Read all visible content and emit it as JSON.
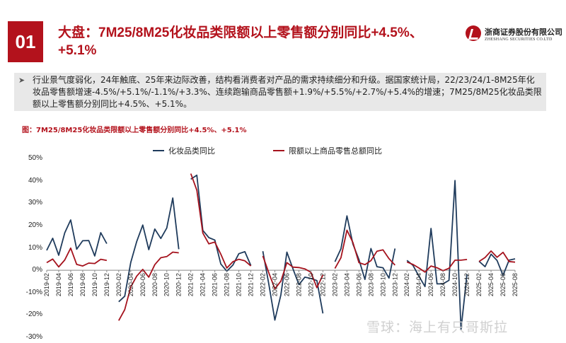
{
  "slide": {
    "number": "01",
    "title": "大盘：7M25/8M25化妆品类限额以上零售额分别同比+4.5%、+5.1%",
    "logo_cn": "浙商证券股份有限公司",
    "logo_en": "ZHESHANG SECURITIES CO.LTD",
    "summary": "行业景气度弱化，24年触底、25年来边际改善，结构看消费者对产品的需求持续细分和升级。据国家统计局，22/23/24/1-8M25年化妆品零售额增速-4.5%/+5.1%/-1.1%/+3.3%、连续跑输商品零售额+1.9%/+5.5%/+2.7%/+5.4%的增速；7M25/8M25化妆品类限额以上零售额分别同比+4.5%、+5.1%。",
    "figure_title": "图：7M25/8M25化妆品类限额以上零售额分别同比+4.5%、+5.1%",
    "watermark": "雪球：海上有只哥斯拉",
    "colors": {
      "accent": "#b3121c",
      "series1": "#1f3b5c",
      "series2": "#a5121d"
    }
  },
  "chart_data": {
    "type": "line",
    "title": "7M25/8M25化妆品类限额以上零售额分别同比+4.5%、+5.1%",
    "xlabel": "",
    "ylabel": "",
    "ylim": [
      -30,
      50
    ],
    "yticks": [
      "50%",
      "40%",
      "30%",
      "20%",
      "10%",
      "0%",
      "-10%",
      "-20%",
      "-30%"
    ],
    "x_tick_labels": [
      "2019-02",
      "2019-04",
      "2019-06",
      "2019-08",
      "2019-10",
      "2019-12",
      "2020-02",
      "2020-04",
      "2020-06",
      "2020-08",
      "2020-10",
      "2020-12",
      "2021-02",
      "2021-04",
      "2021-06",
      "2021-08",
      "2021-10",
      "2021-12",
      "2022-02",
      "2022-04",
      "2022-06",
      "2022-08",
      "2022-10",
      "2022-12",
      "2023-02",
      "2023-04",
      "2023-06",
      "2023-08",
      "2023-10",
      "2023-12",
      "2024-02",
      "2024-04",
      "2024-06",
      "2024-08",
      "2024-10",
      "2024-12",
      "2025-02",
      "2025-04",
      "2025-06",
      "2025-08"
    ],
    "categories": [
      "2019-02",
      "2019-03",
      "2019-04",
      "2019-05",
      "2019-06",
      "2019-07",
      "2019-08",
      "2019-09",
      "2019-10",
      "2019-11",
      "2019-12",
      "2020-01",
      "2020-02",
      "2020-03",
      "2020-04",
      "2020-05",
      "2020-06",
      "2020-07",
      "2020-08",
      "2020-09",
      "2020-10",
      "2020-11",
      "2020-12",
      "2021-01",
      "2021-02",
      "2021-03",
      "2021-04",
      "2021-05",
      "2021-06",
      "2021-07",
      "2021-08",
      "2021-09",
      "2021-10",
      "2021-11",
      "2021-12",
      "2022-01",
      "2022-02",
      "2022-03",
      "2022-04",
      "2022-05",
      "2022-06",
      "2022-07",
      "2022-08",
      "2022-09",
      "2022-10",
      "2022-11",
      "2022-12",
      "2023-01",
      "2023-02",
      "2023-03",
      "2023-04",
      "2023-05",
      "2023-06",
      "2023-07",
      "2023-08",
      "2023-09",
      "2023-10",
      "2023-11",
      "2023-12",
      "2024-01",
      "2024-02",
      "2024-03",
      "2024-04",
      "2024-05",
      "2024-06",
      "2024-07",
      "2024-08",
      "2024-09",
      "2024-10",
      "2024-11",
      "2024-12",
      "2025-01",
      "2025-02",
      "2025-03",
      "2025-04",
      "2025-05",
      "2025-06",
      "2025-07",
      "2025-08"
    ],
    "series": [
      {
        "name": "化妆品类同比",
        "color": "#1f3b5c",
        "values": [
          8.9,
          14.3,
          6.7,
          16.7,
          22.5,
          9.4,
          13.2,
          13.3,
          6.4,
          16.8,
          11.9,
          null,
          -14.1,
          -11.6,
          3.5,
          12.9,
          20.2,
          9.2,
          18.4,
          14.2,
          18.9,
          32.3,
          9.4,
          null,
          40.7,
          42.5,
          17.8,
          14.6,
          13.5,
          2.8,
          -0.4,
          2.3,
          7.4,
          8.3,
          2.1,
          null,
          8.5,
          -6.3,
          -22.3,
          -11.0,
          8.1,
          0.7,
          -6.4,
          -3.1,
          -3.7,
          -4.6,
          -19.3,
          null,
          3.8,
          9.6,
          24.3,
          11.7,
          4.8,
          -4.1,
          9.7,
          1.6,
          1.1,
          -3.5,
          9.7,
          null,
          4.4,
          2.2,
          -2.7,
          -7.3,
          18.7,
          -6.1,
          -6.1,
          -4.5,
          40.1,
          -26.4,
          -1.7,
          null,
          4.0,
          1.6,
          7.2,
          4.4,
          -2.3,
          4.5,
          5.1
        ]
      },
      {
        "name": "限额以上商品零售总额同比",
        "color": "#a5121d",
        "values": [
          3.4,
          5.0,
          1.5,
          4.6,
          9.9,
          2.6,
          1.9,
          3.2,
          3.0,
          4.9,
          4.4,
          null,
          -22.5,
          -17.6,
          -7.5,
          -2.6,
          0.4,
          -3.1,
          2.5,
          5.6,
          6.1,
          8.1,
          7.8,
          null,
          43.2,
          35.8,
          16.6,
          11.8,
          12.6,
          7.2,
          1.0,
          3.8,
          4.9,
          4.2,
          1.9,
          null,
          6.4,
          -1.2,
          -8.3,
          -4.9,
          3.4,
          1.4,
          1.2,
          0.6,
          -0.9,
          -7.8,
          -2.1,
          null,
          0.8,
          5.6,
          17.9,
          12.4,
          3.4,
          2.5,
          4.3,
          8.5,
          9.1,
          5.2,
          2.3,
          null,
          3.7,
          2.6,
          1.0,
          -0.8,
          1.9,
          1.1,
          -0.2,
          0.9,
          4.5,
          4.5,
          4.8,
          null,
          3.9,
          5.7,
          8.6,
          5.8,
          8.0,
          3.9,
          3.6
        ]
      }
    ],
    "legend": [
      "化妆品类同比",
      "限额以上商品零售总额同比"
    ],
    "legend_position": "top",
    "grid": false
  }
}
